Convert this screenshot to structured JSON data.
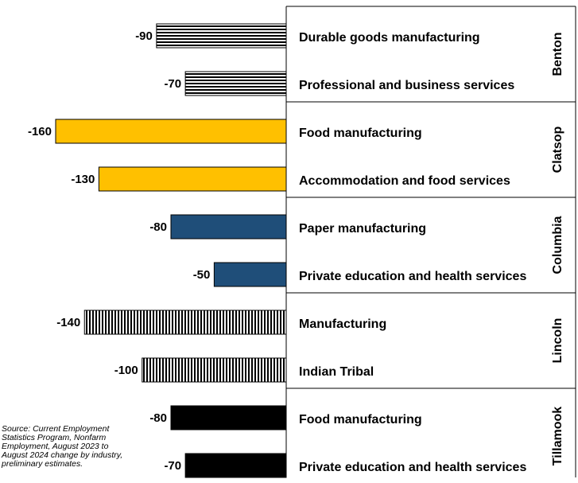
{
  "chart_data": {
    "type": "bar",
    "orientation": "horizontal",
    "groups": [
      {
        "name": "Benton",
        "color": "#000000",
        "pattern": "horizontal-lines",
        "bars": [
          {
            "label": "Durable goods manufacturing",
            "value": -90,
            "value_label": "-90"
          },
          {
            "label": "Professional and business services",
            "value": -70,
            "value_label": "-70"
          }
        ]
      },
      {
        "name": "Clatsop",
        "color": "#FFC000",
        "pattern": "solid",
        "bars": [
          {
            "label": "Food manufacturing",
            "value": -160,
            "value_label": "-160"
          },
          {
            "label": "Accommodation and food services",
            "value": -130,
            "value_label": "-130"
          }
        ]
      },
      {
        "name": "Columbia",
        "color": "#1F4E79",
        "pattern": "solid",
        "bars": [
          {
            "label": "Paper manufacturing",
            "value": -80,
            "value_label": "-80"
          },
          {
            "label": "Private education and health services",
            "value": -50,
            "value_label": "-50"
          }
        ]
      },
      {
        "name": "Lincoln",
        "color": "#000000",
        "pattern": "vertical-lines",
        "bars": [
          {
            "label": "Manufacturing",
            "value": -140,
            "value_label": "-140"
          },
          {
            "label": "Indian Tribal",
            "value": -100,
            "value_label": "-100"
          }
        ]
      },
      {
        "name": "Tillamook",
        "color": "#000000",
        "pattern": "solid",
        "bars": [
          {
            "label": "Food manufacturing",
            "value": -80,
            "value_label": "-80"
          },
          {
            "label": "Private education and health services",
            "value": -70,
            "value_label": "-70"
          }
        ]
      }
    ],
    "xlim": [
      -160,
      0
    ],
    "grid": false,
    "legend": "none"
  },
  "source_note": "Source: Current Employment Statistics Program, Nonfarm Employment, August 2023 to August 2024 change by industry, preliminary estimates."
}
